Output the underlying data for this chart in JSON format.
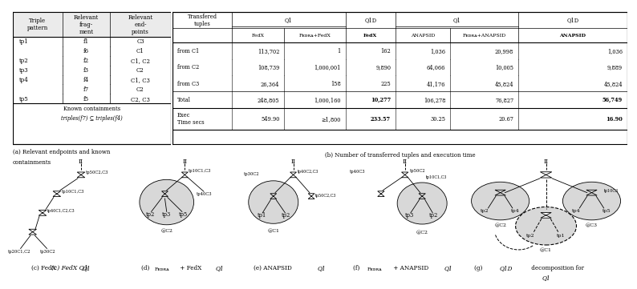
{
  "table_a": {
    "col_headers": [
      "Triple\npattern",
      "Relevant\nfrag-\nment",
      "Relevant\nend-\npoints"
    ],
    "rows": [
      [
        "tp1",
        "f1",
        "C3"
      ],
      [
        "",
        "f6",
        "C1"
      ],
      [
        "tp2",
        "f2",
        "C1, C2"
      ],
      [
        "tp3",
        "f3",
        "C2"
      ],
      [
        "tp4",
        "f4",
        "C1, C3"
      ],
      [
        "",
        "f7",
        "C2"
      ],
      [
        "tp5",
        "f5",
        "C2, C3"
      ]
    ],
    "footer": [
      "Known containments",
      "triples(f7) ⊆ triples(f4)"
    ],
    "caption_line1": "(a) Relevant endpoints and known",
    "caption_line2": "containments"
  },
  "table_b": {
    "caption": "(b) Number of transferred tuples and execution time"
  },
  "tree_captions": [
    "(c) FedX Q1",
    "(d) Fᴇᴅʀᴀ + FedX Q1",
    "(e) ANAPSID Q1",
    "(f) Fᴇᴅʀᴀ + ANAPSID Q1",
    "(g) Q1D decomposition for\nQ1"
  ],
  "bg_color": "#ffffff",
  "gray_fill": "#d8d8d8"
}
